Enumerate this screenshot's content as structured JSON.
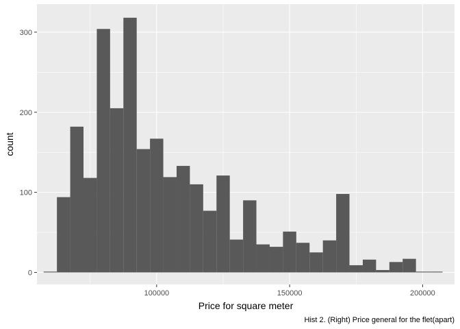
{
  "chart_data": {
    "type": "bar",
    "xlabel": "Price for square meter",
    "ylabel": "count",
    "caption": "Hist 2. (Right) Price general for the flet(apart)",
    "x_ticks": [
      100000,
      150000,
      200000
    ],
    "x_tick_labels": [
      "100000",
      "150000",
      "200000"
    ],
    "y_ticks": [
      0,
      100,
      200,
      300
    ],
    "y_tick_labels": [
      "0",
      "100",
      "200",
      "300"
    ],
    "xlim": [
      55000,
      212000
    ],
    "ylim": [
      -15,
      335
    ],
    "bin_width": 5000,
    "grid": true,
    "colors": {
      "panel": "#ebebeb",
      "grid_major": "#ffffff",
      "bar": "#595959"
    },
    "bins": [
      {
        "x0": 57500,
        "x1": 62500,
        "count": 1
      },
      {
        "x0": 62500,
        "x1": 67500,
        "count": 94
      },
      {
        "x0": 67500,
        "x1": 72500,
        "count": 182
      },
      {
        "x0": 72500,
        "x1": 77500,
        "count": 118
      },
      {
        "x0": 77500,
        "x1": 82500,
        "count": 304
      },
      {
        "x0": 82500,
        "x1": 87500,
        "count": 205
      },
      {
        "x0": 87500,
        "x1": 92500,
        "count": 318
      },
      {
        "x0": 92500,
        "x1": 97500,
        "count": 154
      },
      {
        "x0": 97500,
        "x1": 102500,
        "count": 167
      },
      {
        "x0": 102500,
        "x1": 107500,
        "count": 119
      },
      {
        "x0": 107500,
        "x1": 112500,
        "count": 133
      },
      {
        "x0": 112500,
        "x1": 117500,
        "count": 110
      },
      {
        "x0": 117500,
        "x1": 122500,
        "count": 77
      },
      {
        "x0": 122500,
        "x1": 127500,
        "count": 121
      },
      {
        "x0": 127500,
        "x1": 132500,
        "count": 41
      },
      {
        "x0": 132500,
        "x1": 137500,
        "count": 90
      },
      {
        "x0": 137500,
        "x1": 142500,
        "count": 35
      },
      {
        "x0": 142500,
        "x1": 147500,
        "count": 32
      },
      {
        "x0": 147500,
        "x1": 152500,
        "count": 51
      },
      {
        "x0": 152500,
        "x1": 157500,
        "count": 37
      },
      {
        "x0": 157500,
        "x1": 162500,
        "count": 25
      },
      {
        "x0": 162500,
        "x1": 167500,
        "count": 40
      },
      {
        "x0": 167500,
        "x1": 172500,
        "count": 98
      },
      {
        "x0": 172500,
        "x1": 177500,
        "count": 9
      },
      {
        "x0": 177500,
        "x1": 182500,
        "count": 16
      },
      {
        "x0": 182500,
        "x1": 187500,
        "count": 3
      },
      {
        "x0": 187500,
        "x1": 192500,
        "count": 13
      },
      {
        "x0": 192500,
        "x1": 197500,
        "count": 17
      },
      {
        "x0": 197500,
        "x1": 202500,
        "count": 1
      },
      {
        "x0": 202500,
        "x1": 207500,
        "count": 1
      }
    ]
  }
}
